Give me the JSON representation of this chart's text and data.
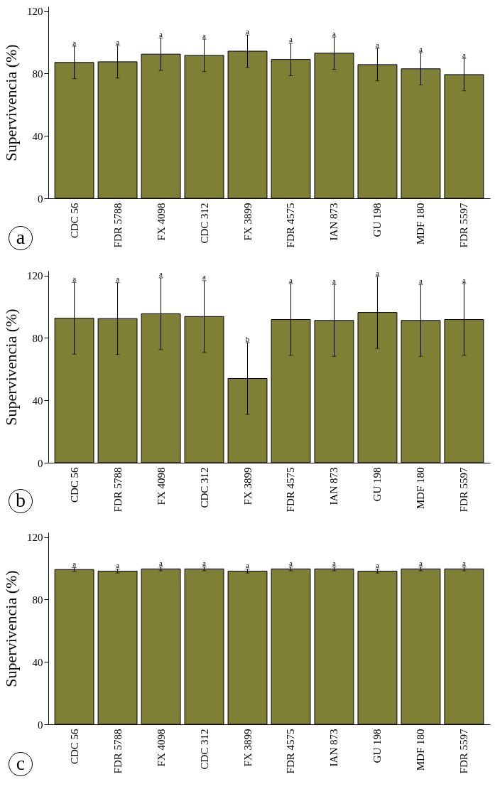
{
  "chart_data": [
    {
      "type": "bar",
      "ylabel": "Supervivencia (%)",
      "categories": [
        "CDC 56",
        "FDR 5788",
        "FX 4098",
        "CDC 312",
        "FX 3899",
        "FDR 4575",
        "IAN 873",
        "GU 198",
        "MDF 180",
        "FDR 5597"
      ],
      "values": [
        87.1,
        87.5,
        92.4,
        91.6,
        94.3,
        89.0,
        93.0,
        85.7,
        83.0,
        79.3
      ],
      "errors": [
        10.4,
        10.4,
        10.4,
        10.4,
        10.4,
        10.4,
        10.4,
        10.4,
        10.4,
        10.4
      ],
      "color": "#7f8035",
      "ylim": [
        0,
        123
      ],
      "yticks": [
        0,
        40,
        80,
        120
      ],
      "annotations": [
        {
          "text": "a",
          "x": "CDC 56",
          "y": 99.5
        },
        {
          "text": "a",
          "x": "FDR 5788",
          "y": 99.9
        },
        {
          "text": "a",
          "x": "FX 4098",
          "y": 104.8
        },
        {
          "text": "a",
          "x": "CDC 312",
          "y": 104.0
        },
        {
          "text": "a",
          "x": "FX 3899",
          "y": 106.7
        },
        {
          "text": "a",
          "x": "FDR 4575",
          "y": 101.4
        },
        {
          "text": "a",
          "x": "IAN 873",
          "y": 105.4
        },
        {
          "text": "a",
          "x": "GU 198",
          "y": 98.1
        },
        {
          "text": "a",
          "x": "MDF 180",
          "y": 95.4
        },
        {
          "text": "a",
          "x": "FDR 5597",
          "y": 91.7
        },
        "a"
      ]
    },
    {
      "type": "bar",
      "ylabel": "Supervivencia (%)",
      "categories": [
        "CDC 56",
        "FDR 5788",
        "FX 4098",
        "CDC 312",
        "FX 3899",
        "FDR 4575",
        "IAN 873",
        "GU 198",
        "MDF 180",
        "FDR 5597"
      ],
      "values": [
        92.6,
        92.4,
        95.5,
        93.7,
        54.0,
        91.8,
        91.2,
        96.3,
        91.2,
        91.8
      ],
      "errors": [
        23,
        23,
        23,
        23,
        23,
        23,
        23,
        23,
        23,
        23
      ],
      "color": "#7f8035",
      "ylim": [
        0,
        123
      ],
      "yticks": [
        0,
        40,
        80,
        120
      ],
      "annotations": [
        {
          "text": "a",
          "x": "CDC 56",
          "y": 117.6
        },
        {
          "text": "a",
          "x": "FDR 5788",
          "y": 117.4
        },
        {
          "text": "a",
          "x": "FX 4098",
          "y": 120.5
        },
        {
          "text": "a",
          "x": "CDC 312",
          "y": 118.7
        },
        {
          "text": "b",
          "x": "FX 3899",
          "y": 79.0
        },
        {
          "text": "a",
          "x": "FDR 4575",
          "y": 116.8
        },
        {
          "text": "a",
          "x": "IAN 873",
          "y": 116.2
        },
        {
          "text": "a",
          "x": "GU 198",
          "y": 121.3
        },
        {
          "text": "a",
          "x": "MDF 180",
          "y": 116.2
        },
        {
          "text": "a",
          "x": "FDR 5597",
          "y": 116.8
        },
        "b"
      ]
    },
    {
      "type": "bar",
      "ylabel": "Supervivencia (%)",
      "categories": [
        "CDC 56",
        "FDR 5788",
        "FX 4098",
        "CDC 312",
        "FX 3899",
        "FDR 4575",
        "IAN 873",
        "GU 198",
        "MDF 180",
        "FDR 5597"
      ],
      "values": [
        99.2,
        98.2,
        99.6,
        99.6,
        98.2,
        99.6,
        99.6,
        98.2,
        99.6,
        99.6
      ],
      "errors": [
        1.2,
        1.2,
        1.2,
        1.2,
        1.2,
        1.2,
        1.2,
        1.2,
        1.2,
        1.2
      ],
      "color": "#7f8035",
      "ylim": [
        0,
        123
      ],
      "yticks": [
        0,
        40,
        80,
        120
      ],
      "annotations": [
        {
          "text": "a",
          "x": "CDC 56",
          "y": 102.4
        },
        {
          "text": "a",
          "x": "FDR 5788",
          "y": 101.4
        },
        {
          "text": "a",
          "x": "FX 4098",
          "y": 102.8
        },
        {
          "text": "a",
          "x": "CDC 312",
          "y": 102.8
        },
        {
          "text": "a",
          "x": "FX 3899",
          "y": 101.4
        },
        {
          "text": "a",
          "x": "FDR 4575",
          "y": 102.8
        },
        {
          "text": "a",
          "x": "IAN 873",
          "y": 102.8
        },
        {
          "text": "a",
          "x": "GU 198",
          "y": 101.4
        },
        {
          "text": "a",
          "x": "MDF 180",
          "y": 102.8
        },
        {
          "text": "a",
          "x": "FDR 5597",
          "y": 102.8
        },
        "c"
      ]
    }
  ]
}
